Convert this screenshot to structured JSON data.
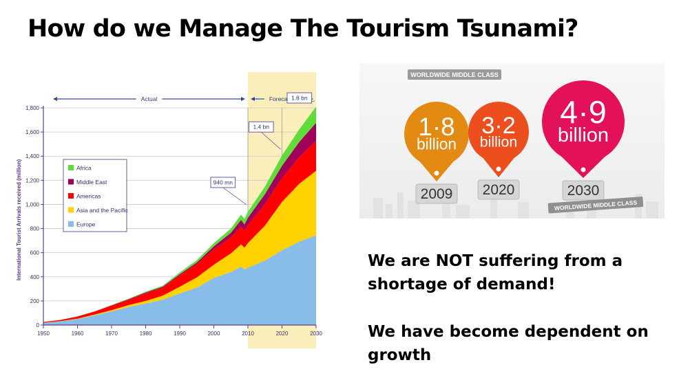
{
  "slide": {
    "title": "How do we Manage The Tourism Tsunami?",
    "statement_1": "We are NOT suffering from a shortage of demand!",
    "statement_2": "We have become dependent on growth"
  },
  "chart_data": {
    "type": "area",
    "stacked": true,
    "title": "",
    "xlabel": "",
    "ylabel": "International Tourist Arrivals received (million)",
    "xlim": [
      1950,
      2030
    ],
    "ylim": [
      0,
      1800
    ],
    "x_ticks": [
      1950,
      1960,
      1970,
      1980,
      1990,
      2000,
      2010,
      2020,
      2030
    ],
    "y_ticks": [
      0,
      200,
      400,
      600,
      800,
      1000,
      1200,
      1400,
      1600,
      1800
    ],
    "y_tick_labels": [
      "0",
      "200",
      "400",
      "600",
      "800",
      "1,000",
      "1,200",
      "1,400",
      "1,600",
      "1,800"
    ],
    "grid": true,
    "legend_position": "left",
    "x": [
      1950,
      1955,
      1960,
      1965,
      1970,
      1975,
      1980,
      1985,
      1990,
      1995,
      2000,
      2005,
      2008,
      2009,
      2010,
      2015,
      2020,
      2025,
      2030
    ],
    "series": [
      {
        "name": "Europe",
        "color": "#87bde8",
        "values": [
          17,
          30,
          50,
          80,
          113,
          150,
          178,
          210,
          262,
          310,
          390,
          440,
          485,
          460,
          475,
          535,
          620,
          690,
          744
        ]
      },
      {
        "name": "Asia and the Pacific",
        "color": "#ffd200",
        "values": [
          1,
          2,
          3,
          7,
          10,
          15,
          22,
          34,
          56,
          85,
          110,
          154,
          184,
          181,
          204,
          290,
          400,
          480,
          535
        ]
      },
      {
        "name": "Americas",
        "color": "#ff0000",
        "values": [
          7,
          10,
          17,
          24,
          38,
          45,
          62,
          65,
          93,
          110,
          128,
          133,
          147,
          140,
          150,
          180,
          199,
          220,
          248
        ]
      },
      {
        "name": "Middle East",
        "color": "#a0005a",
        "values": [
          0,
          0,
          1,
          1,
          2,
          4,
          7,
          8,
          10,
          13,
          24,
          38,
          55,
          53,
          60,
          80,
          101,
          125,
          149
        ]
      },
      {
        "name": "Africa",
        "color": "#5fdc3c",
        "values": [
          0.5,
          1,
          2,
          2,
          3,
          5,
          7,
          9,
          15,
          20,
          26,
          35,
          44,
          46,
          50,
          63,
          85,
          105,
          134
        ]
      }
    ],
    "annotations": [
      {
        "text": "Actual",
        "x_start": 1950,
        "x_end": 2010
      },
      {
        "text": "Forecasts",
        "x_start": 2010,
        "x_end": 2030
      },
      {
        "text": "940 mn",
        "x": 2010,
        "y": 940
      },
      {
        "text": "1.4 bn",
        "x": 2020,
        "y": 1400
      },
      {
        "text": "1.8 bn",
        "x": 2030,
        "y": 1800
      }
    ]
  },
  "infographic": {
    "header_label": "WORLDWIDE MIDDLE CLASS",
    "footer_label": "WORLDWIDE MIDDLE CLASS",
    "pins": [
      {
        "value": "1·8",
        "unit": "billion",
        "year": "2009",
        "color": "#e28a12"
      },
      {
        "value": "3·2",
        "unit": "billion",
        "year": "2020",
        "color": "#ec4e1d"
      },
      {
        "value": "4·9",
        "unit": "billion",
        "year": "2030",
        "color": "#e3105a"
      }
    ]
  }
}
